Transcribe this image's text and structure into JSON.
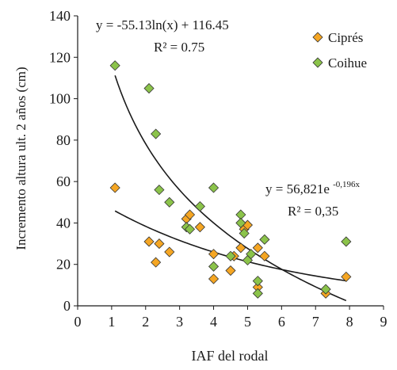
{
  "chart_data": {
    "type": "scatter",
    "title": "",
    "xlabel": "IAF del rodal",
    "ylabel": "Incremento altura ult. 2  años (cm)",
    "xlim": [
      0,
      9
    ],
    "ylim": [
      0,
      140
    ],
    "xticks": [
      0,
      1,
      2,
      3,
      4,
      5,
      6,
      7,
      8,
      9
    ],
    "yticks": [
      0,
      20,
      40,
      60,
      80,
      100,
      120,
      140
    ],
    "grid": false,
    "legend_position": "top-right",
    "series": [
      {
        "name": "Ciprés",
        "marker": "diamond",
        "color": "#f5a623",
        "points": [
          [
            1.1,
            57
          ],
          [
            2.1,
            31
          ],
          [
            2.3,
            21
          ],
          [
            2.4,
            30
          ],
          [
            2.7,
            26
          ],
          [
            3.2,
            42
          ],
          [
            3.3,
            44
          ],
          [
            3.6,
            38
          ],
          [
            4.0,
            25
          ],
          [
            4.0,
            13
          ],
          [
            4.5,
            17
          ],
          [
            4.6,
            24
          ],
          [
            4.8,
            28
          ],
          [
            4.9,
            37
          ],
          [
            5.0,
            39
          ],
          [
            5.3,
            28
          ],
          [
            5.3,
            9
          ],
          [
            5.5,
            24
          ],
          [
            7.3,
            6
          ],
          [
            7.9,
            14
          ]
        ],
        "trendline": {
          "type": "power",
          "a": 56.821,
          "b": -0.196,
          "equation": "y = 56,821e",
          "exponent": "-0,196x",
          "r2": "R² = 0,35"
        }
      },
      {
        "name": "Coihue",
        "marker": "diamond",
        "color": "#8bc34a",
        "points": [
          [
            1.1,
            116
          ],
          [
            2.1,
            105
          ],
          [
            2.3,
            83
          ],
          [
            2.4,
            56
          ],
          [
            2.7,
            50
          ],
          [
            3.2,
            38
          ],
          [
            3.3,
            37
          ],
          [
            3.6,
            48
          ],
          [
            4.0,
            57
          ],
          [
            4.0,
            19
          ],
          [
            4.5,
            24
          ],
          [
            4.8,
            44
          ],
          [
            4.8,
            40
          ],
          [
            4.9,
            35
          ],
          [
            5.0,
            22
          ],
          [
            5.1,
            25
          ],
          [
            5.3,
            12
          ],
          [
            5.3,
            6
          ],
          [
            5.5,
            32
          ],
          [
            7.3,
            8
          ],
          [
            7.9,
            31
          ]
        ],
        "trendline": {
          "type": "log",
          "a": -55.13,
          "b": 116.45,
          "equation": "y = -55.13ln(x) + 116.45",
          "r2": "R² = 0.75"
        }
      }
    ]
  },
  "colors": {
    "axis": "#1a1a1a",
    "cipres": "#f5a623",
    "coihue": "#8bc34a",
    "marker_stroke": "#333333"
  }
}
